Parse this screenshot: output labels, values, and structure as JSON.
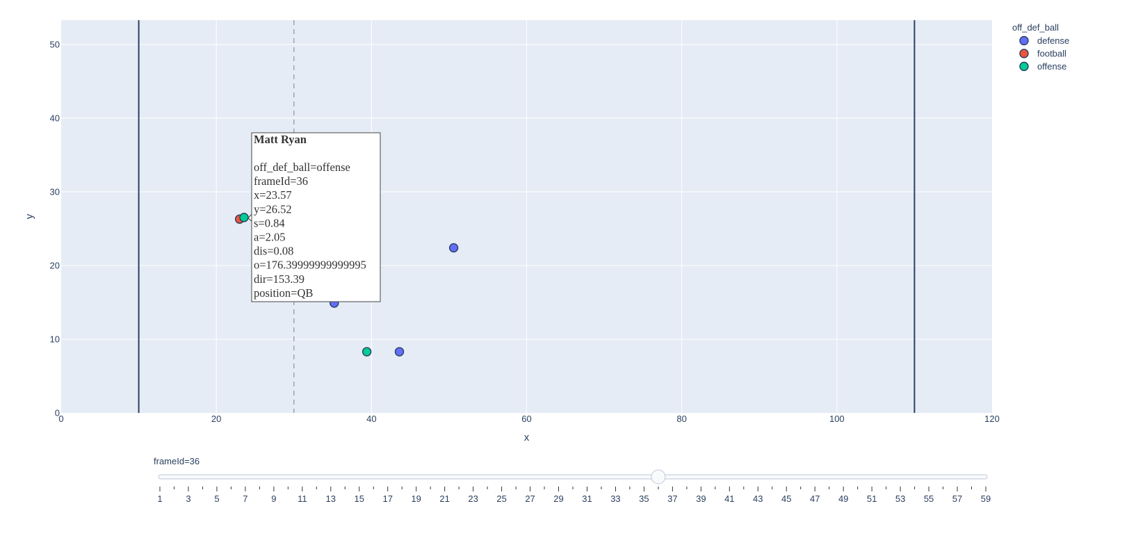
{
  "chart_data": {
    "type": "scatter",
    "xlabel": "x",
    "ylabel": "y",
    "xlim": [
      0,
      120
    ],
    "ylim": [
      0,
      53.3
    ],
    "x_ticks": [
      0,
      20,
      40,
      60,
      80,
      100,
      120
    ],
    "y_ticks": [
      0,
      10,
      20,
      30,
      40,
      50
    ],
    "grid": true,
    "legend": {
      "title": "off_def_ball",
      "placement": "top-right",
      "entries": [
        {
          "name": "defense",
          "color": "#636efa"
        },
        {
          "name": "football",
          "color": "#ef553b"
        },
        {
          "name": "offense",
          "color": "#00cc96"
        }
      ]
    },
    "series": [
      {
        "name": "defense",
        "color": "#636efa",
        "points": [
          {
            "x": 50.6,
            "y": 22.4
          },
          {
            "x": 35.2,
            "y": 14.9
          },
          {
            "x": 43.6,
            "y": 8.3
          }
        ]
      },
      {
        "name": "football",
        "color": "#ef553b",
        "points": [
          {
            "x": 23.0,
            "y": 26.3
          }
        ]
      },
      {
        "name": "offense",
        "color": "#00cc96",
        "points": [
          {
            "x": 23.57,
            "y": 26.52
          },
          {
            "x": 39.4,
            "y": 8.3
          }
        ]
      }
    ],
    "vertical_lines": [
      {
        "x": 10,
        "style": "solid",
        "color": "#2a3f5f"
      },
      {
        "x": 110,
        "style": "solid",
        "color": "#2a3f5f"
      },
      {
        "x": 30,
        "style": "dashed",
        "color": "#9aa3b5"
      }
    ],
    "hover": {
      "title": "Matt Ryan",
      "anchor": {
        "x": 23.57,
        "y": 26.52
      },
      "lines": [
        "off_def_ball=offense",
        "frameId=36",
        "x=23.57",
        "y=26.52",
        "s=0.84",
        "a=2.05",
        "dis=0.08",
        "o=176.39999999999995",
        "dir=153.39",
        "position=QB"
      ]
    },
    "slider": {
      "label": "frameId=36",
      "min": 1,
      "max": 59,
      "value": 36,
      "labeled_ticks": [
        1,
        3,
        5,
        7,
        9,
        11,
        13,
        15,
        17,
        19,
        21,
        23,
        25,
        27,
        29,
        31,
        33,
        35,
        37,
        39,
        41,
        43,
        45,
        47,
        49,
        51,
        53,
        55,
        57,
        59
      ]
    }
  }
}
